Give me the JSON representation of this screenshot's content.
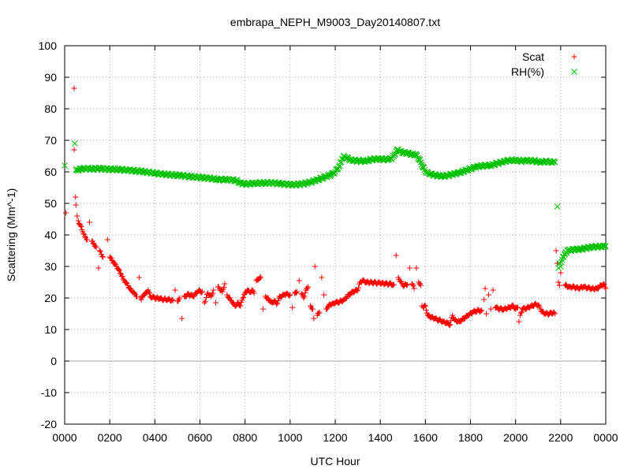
{
  "chart_data": {
    "type": "scatter",
    "title": "embrapa_NEPH_M9003_Day20140807.txt",
    "xlabel": "UTC Hour",
    "ylabel": "Scattering (Mm^-1)",
    "xlim": [
      0,
      24
    ],
    "ylim": [
      -20,
      100
    ],
    "x_ticks": [
      {
        "value": 0,
        "label": "0000"
      },
      {
        "value": 2,
        "label": "0200"
      },
      {
        "value": 4,
        "label": "0400"
      },
      {
        "value": 6,
        "label": "0600"
      },
      {
        "value": 8,
        "label": "0800"
      },
      {
        "value": 10,
        "label": "1000"
      },
      {
        "value": 12,
        "label": "1200"
      },
      {
        "value": 14,
        "label": "1400"
      },
      {
        "value": 16,
        "label": "1600"
      },
      {
        "value": 18,
        "label": "1800"
      },
      {
        "value": 20,
        "label": "2000"
      },
      {
        "value": 22,
        "label": "2200"
      },
      {
        "value": 24,
        "label": "0000"
      }
    ],
    "y_ticks": [
      -20,
      -10,
      0,
      10,
      20,
      30,
      40,
      50,
      60,
      70,
      80,
      90,
      100
    ],
    "grid": true,
    "zero_line": true,
    "legend_position": "top-right",
    "series": [
      {
        "name": "Scat",
        "marker": "+",
        "color": "#ff0000",
        "points": [
          [
            0.05,
            47
          ],
          [
            0.42,
            86.5
          ],
          [
            0.42,
            67
          ],
          [
            0.48,
            52
          ],
          [
            0.5,
            49.5
          ],
          [
            0.55,
            46
          ],
          [
            0.6,
            44.5
          ],
          [
            0.7,
            43
          ],
          [
            0.8,
            41
          ],
          [
            0.9,
            39.5
          ],
          [
            1.0,
            38.5
          ],
          [
            1.1,
            44
          ],
          [
            1.2,
            38
          ],
          [
            1.3,
            37
          ],
          [
            1.4,
            36
          ],
          [
            1.5,
            29.5
          ],
          [
            1.55,
            35
          ],
          [
            1.7,
            33
          ],
          [
            1.9,
            38.5
          ],
          [
            2.0,
            33
          ],
          [
            2.1,
            32
          ],
          [
            2.2,
            31
          ],
          [
            2.3,
            30
          ],
          [
            2.4,
            29
          ],
          [
            2.5,
            27.5
          ],
          [
            2.6,
            26
          ],
          [
            2.7,
            25
          ],
          [
            2.8,
            24
          ],
          [
            2.9,
            23
          ],
          [
            3.0,
            22
          ],
          [
            3.1,
            21.5
          ],
          [
            3.2,
            20.5
          ],
          [
            3.3,
            26.5
          ],
          [
            3.35,
            20
          ],
          [
            3.4,
            19.5
          ],
          [
            3.5,
            21
          ],
          [
            3.6,
            21.5
          ],
          [
            3.7,
            22.5
          ],
          [
            3.8,
            20.5
          ],
          [
            4.0,
            20
          ],
          [
            4.2,
            19.8
          ],
          [
            4.4,
            19.5
          ],
          [
            4.6,
            19.6
          ],
          [
            4.8,
            19.2
          ],
          [
            4.9,
            22.5
          ],
          [
            5.0,
            19
          ],
          [
            5.1,
            20
          ],
          [
            5.2,
            13.5
          ],
          [
            5.3,
            20.5
          ],
          [
            5.5,
            21.2
          ],
          [
            5.7,
            20.5
          ],
          [
            5.9,
            22
          ],
          [
            6.0,
            22.3
          ],
          [
            6.1,
            22
          ],
          [
            6.2,
            18.5
          ],
          [
            6.35,
            21.5
          ],
          [
            6.5,
            20.5
          ],
          [
            6.6,
            22.5
          ],
          [
            6.7,
            18.5
          ],
          [
            6.8,
            23.5
          ],
          [
            7.0,
            22
          ],
          [
            7.1,
            24.5
          ],
          [
            7.2,
            21
          ],
          [
            7.3,
            20
          ],
          [
            7.4,
            19
          ],
          [
            7.5,
            18
          ],
          [
            7.6,
            17.5
          ],
          [
            7.7,
            18.5
          ],
          [
            7.8,
            17.5
          ],
          [
            7.9,
            20
          ],
          [
            8.0,
            21.5
          ],
          [
            8.1,
            22.5
          ],
          [
            8.2,
            21.8
          ],
          [
            8.3,
            22.5
          ],
          [
            8.4,
            21.5
          ],
          [
            8.5,
            25.5
          ],
          [
            8.6,
            26
          ],
          [
            8.7,
            26.5
          ],
          [
            8.8,
            16.5
          ],
          [
            8.9,
            20.5
          ],
          [
            9.0,
            20
          ],
          [
            9.1,
            19
          ],
          [
            9.2,
            18.5
          ],
          [
            9.3,
            19.2
          ],
          [
            9.4,
            18
          ],
          [
            9.5,
            20
          ],
          [
            9.6,
            20.5
          ],
          [
            9.7,
            21
          ],
          [
            9.8,
            21.2
          ],
          [
            10.0,
            21
          ],
          [
            10.1,
            17
          ],
          [
            10.2,
            21.5
          ],
          [
            10.3,
            22
          ],
          [
            10.4,
            25.5
          ],
          [
            10.5,
            21.3
          ],
          [
            10.6,
            20
          ],
          [
            10.7,
            22.5
          ],
          [
            10.8,
            23.5
          ],
          [
            10.9,
            17.5
          ],
          [
            11.0,
            16.5
          ],
          [
            11.05,
            13.5
          ],
          [
            11.1,
            30
          ],
          [
            11.2,
            14.5
          ],
          [
            11.3,
            15.5
          ],
          [
            11.4,
            26.5
          ],
          [
            11.5,
            21
          ],
          [
            11.6,
            16.5
          ],
          [
            11.7,
            17.5
          ],
          [
            11.8,
            18
          ],
          [
            11.9,
            18.2
          ],
          [
            12.0,
            18.5
          ],
          [
            12.2,
            18.8
          ],
          [
            12.4,
            19.5
          ],
          [
            12.6,
            21
          ],
          [
            12.8,
            22
          ],
          [
            13.0,
            22.5
          ],
          [
            13.1,
            25
          ],
          [
            13.2,
            25.5
          ],
          [
            13.4,
            25
          ],
          [
            13.6,
            25
          ],
          [
            13.8,
            24.8
          ],
          [
            14.0,
            24.7
          ],
          [
            14.2,
            24.5
          ],
          [
            14.4,
            24.5
          ],
          [
            14.6,
            24.2
          ],
          [
            14.7,
            33.5
          ],
          [
            14.8,
            26.5
          ],
          [
            15.0,
            24
          ],
          [
            15.2,
            24.2
          ],
          [
            15.3,
            29.5
          ],
          [
            15.4,
            24.5
          ],
          [
            15.5,
            23
          ],
          [
            15.6,
            29.5
          ],
          [
            15.7,
            25
          ],
          [
            15.8,
            24
          ],
          [
            15.85,
            17.5
          ],
          [
            15.9,
            17
          ],
          [
            16.0,
            17.5
          ],
          [
            16.1,
            14.5
          ],
          [
            16.2,
            14
          ],
          [
            16.4,
            13.5
          ],
          [
            16.6,
            13
          ],
          [
            16.8,
            12.5
          ],
          [
            17.0,
            12
          ],
          [
            17.1,
            11.5
          ],
          [
            17.2,
            14.5
          ],
          [
            17.3,
            13
          ],
          [
            17.5,
            12.5
          ],
          [
            17.7,
            13.5
          ],
          [
            17.9,
            14.5
          ],
          [
            18.1,
            15.5
          ],
          [
            18.3,
            16
          ],
          [
            18.5,
            16
          ],
          [
            18.6,
            19.5
          ],
          [
            18.65,
            23
          ],
          [
            18.7,
            15
          ],
          [
            18.8,
            21
          ],
          [
            18.9,
            16.5
          ],
          [
            19.0,
            22.5
          ],
          [
            19.1,
            17
          ],
          [
            19.3,
            16.5
          ],
          [
            19.5,
            16.5
          ],
          [
            19.7,
            17
          ],
          [
            19.9,
            17.5
          ],
          [
            20.0,
            16.5
          ],
          [
            20.1,
            17
          ],
          [
            20.15,
            12.5
          ],
          [
            20.2,
            14.5
          ],
          [
            20.3,
            16.5
          ],
          [
            20.5,
            16.8
          ],
          [
            20.7,
            17.5
          ],
          [
            20.9,
            18
          ],
          [
            21.0,
            17.8
          ],
          [
            21.1,
            16.5
          ],
          [
            21.2,
            15.5
          ],
          [
            21.3,
            15
          ],
          [
            21.5,
            15
          ],
          [
            21.7,
            15.5
          ],
          [
            21.75,
            15
          ],
          [
            21.8,
            35
          ],
          [
            21.85,
            31
          ],
          [
            21.9,
            25
          ],
          [
            21.95,
            24
          ],
          [
            22.0,
            28
          ],
          [
            22.2,
            24
          ],
          [
            22.4,
            23.5
          ],
          [
            22.6,
            23.5
          ],
          [
            22.8,
            23
          ],
          [
            23.0,
            23.5
          ],
          [
            23.2,
            23.2
          ],
          [
            23.4,
            23
          ],
          [
            23.6,
            23
          ],
          [
            23.8,
            24
          ],
          [
            23.9,
            24.5
          ],
          [
            24.0,
            23
          ]
        ]
      },
      {
        "name": "RH(%)",
        "marker": "x",
        "color": "#00c000",
        "points": [
          [
            0.0,
            62
          ],
          [
            0.45,
            69
          ],
          [
            0.5,
            60.5
          ],
          [
            0.8,
            61
          ],
          [
            1.2,
            61
          ],
          [
            1.6,
            61
          ],
          [
            2.0,
            60.8
          ],
          [
            2.4,
            60.8
          ],
          [
            2.8,
            60.5
          ],
          [
            3.2,
            60.3
          ],
          [
            3.6,
            60
          ],
          [
            4.0,
            59.5
          ],
          [
            4.4,
            59.3
          ],
          [
            4.8,
            59
          ],
          [
            5.2,
            58.8
          ],
          [
            5.6,
            58.5
          ],
          [
            6.0,
            58.2
          ],
          [
            6.4,
            58
          ],
          [
            6.8,
            57.6
          ],
          [
            7.2,
            57.5
          ],
          [
            7.6,
            57.3
          ],
          [
            7.8,
            56.5
          ],
          [
            8.0,
            56.2
          ],
          [
            8.4,
            56.3
          ],
          [
            8.8,
            56.5
          ],
          [
            9.2,
            56.5
          ],
          [
            9.6,
            56.2
          ],
          [
            10.0,
            56
          ],
          [
            10.4,
            56
          ],
          [
            10.8,
            56.5
          ],
          [
            11.0,
            57
          ],
          [
            11.2,
            57.5
          ],
          [
            11.4,
            58
          ],
          [
            11.6,
            58.5
          ],
          [
            11.8,
            59
          ],
          [
            12.0,
            60
          ],
          [
            12.2,
            62
          ],
          [
            12.3,
            64
          ],
          [
            12.4,
            65
          ],
          [
            12.6,
            64
          ],
          [
            12.8,
            63.5
          ],
          [
            13.0,
            63.5
          ],
          [
            13.2,
            63.5
          ],
          [
            13.4,
            63.5
          ],
          [
            13.6,
            64
          ],
          [
            13.8,
            64
          ],
          [
            14.0,
            64
          ],
          [
            14.2,
            64
          ],
          [
            14.4,
            64
          ],
          [
            14.6,
            65
          ],
          [
            14.7,
            66.5
          ],
          [
            14.8,
            67
          ],
          [
            14.9,
            66.5
          ],
          [
            15.0,
            66
          ],
          [
            15.2,
            66
          ],
          [
            15.4,
            65.5
          ],
          [
            15.6,
            65.5
          ],
          [
            15.8,
            63
          ],
          [
            15.9,
            61.5
          ],
          [
            16.0,
            60
          ],
          [
            16.2,
            59.3
          ],
          [
            16.4,
            59
          ],
          [
            16.6,
            58.8
          ],
          [
            16.8,
            58.7
          ],
          [
            17.0,
            58.8
          ],
          [
            17.2,
            59.2
          ],
          [
            17.4,
            59.5
          ],
          [
            17.6,
            60
          ],
          [
            17.8,
            60.5
          ],
          [
            18.0,
            61
          ],
          [
            18.2,
            61.5
          ],
          [
            18.4,
            61.7
          ],
          [
            18.6,
            62
          ],
          [
            18.8,
            62
          ],
          [
            19.0,
            62.3
          ],
          [
            19.2,
            62.7
          ],
          [
            19.4,
            63
          ],
          [
            19.6,
            63.5
          ],
          [
            19.8,
            63.7
          ],
          [
            20.0,
            63.7
          ],
          [
            20.2,
            63.5
          ],
          [
            20.4,
            63.5
          ],
          [
            20.6,
            63.5
          ],
          [
            20.8,
            63.5
          ],
          [
            21.0,
            63.2
          ],
          [
            21.2,
            63.2
          ],
          [
            21.4,
            63.3
          ],
          [
            21.6,
            63
          ],
          [
            21.75,
            63
          ],
          [
            21.85,
            49
          ],
          [
            21.9,
            29.5
          ],
          [
            21.95,
            31
          ],
          [
            22.0,
            30
          ],
          [
            22.1,
            33
          ],
          [
            22.2,
            34
          ],
          [
            22.3,
            35
          ],
          [
            22.5,
            35.3
          ],
          [
            22.7,
            35.5
          ],
          [
            22.9,
            35.5
          ],
          [
            23.1,
            35.8
          ],
          [
            23.3,
            36
          ],
          [
            23.5,
            36.2
          ],
          [
            23.7,
            36.3
          ],
          [
            23.9,
            36.5
          ],
          [
            24.0,
            36.5
          ]
        ]
      }
    ]
  }
}
